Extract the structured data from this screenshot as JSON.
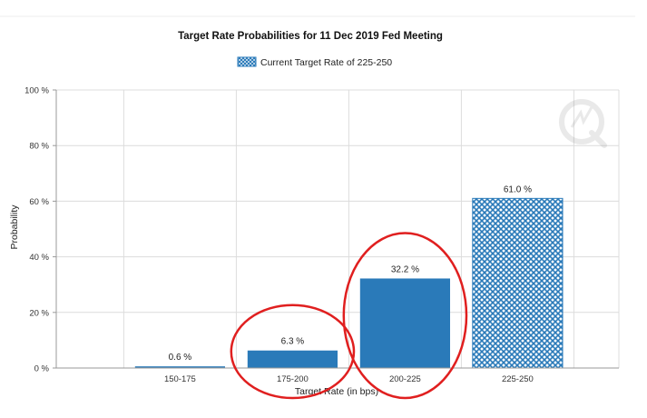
{
  "chart_data": {
    "type": "bar",
    "title": "Target Rate Probabilities for 11 Dec 2019 Fed Meeting",
    "legend": {
      "label": "Current Target Rate of 225-250",
      "placement": "top-center"
    },
    "xlabel": "Target Rate (in bps)",
    "ylabel": "Probability",
    "categories": [
      "150-175",
      "175-200",
      "200-225",
      "225-250"
    ],
    "values": [
      0.6,
      6.3,
      32.2,
      61.0
    ],
    "data_labels": [
      "0.6 %",
      "6.3 %",
      "32.2 %",
      "61.0 %"
    ],
    "current_category": "225-250",
    "ylim": [
      0,
      100
    ],
    "y_ticks": [
      0,
      20,
      40,
      60,
      80,
      100
    ],
    "y_tick_labels": [
      "0 %",
      "20 %",
      "40 %",
      "60 %",
      "80 %",
      "100 %"
    ],
    "grid": true,
    "colors": {
      "bar": "#2a7ab9",
      "current_bar": "#2a7ab9",
      "grid": "#dcdcdc",
      "annotation_circle": "#e01f1f"
    },
    "annotations": [
      {
        "type": "ellipse",
        "category": "175-200",
        "color": "#e01f1f"
      },
      {
        "type": "ellipse",
        "category": "200-225",
        "color": "#e01f1f"
      }
    ]
  }
}
